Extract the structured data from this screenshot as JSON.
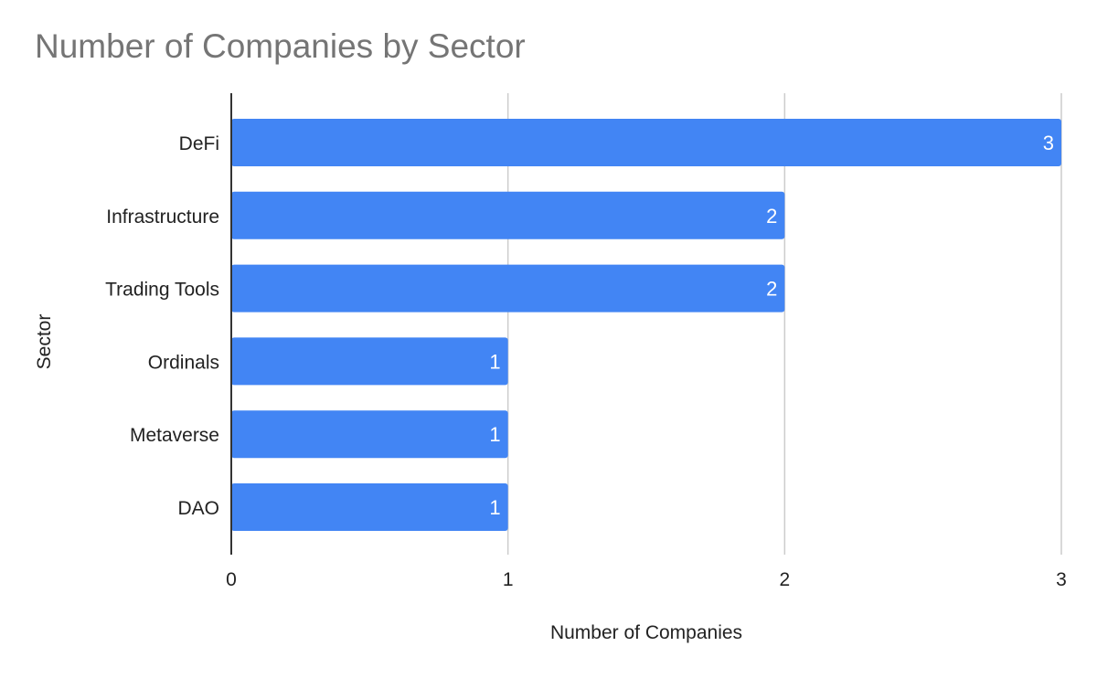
{
  "chart_data": {
    "type": "bar",
    "orientation": "horizontal",
    "title": "Number of Companies by Sector",
    "xlabel": "Number of Companies",
    "ylabel": "Sector",
    "categories": [
      "DeFi",
      "Infrastructure",
      "Trading Tools",
      "Ordinals",
      "Metaverse",
      "DAO"
    ],
    "values": [
      3,
      2,
      2,
      1,
      1,
      1
    ],
    "data_labels": [
      "3",
      "2",
      "2",
      "1",
      "1",
      "1"
    ],
    "xlim": [
      0,
      3
    ],
    "x_ticks": [
      "0",
      "1",
      "2",
      "3"
    ],
    "grid": true,
    "legend": "none",
    "colors": {
      "bar": "#4285f4",
      "grid": "#cccccc",
      "axis": "#333333",
      "title": "#757575",
      "text": "#222222",
      "data_label": "#ffffff"
    }
  }
}
